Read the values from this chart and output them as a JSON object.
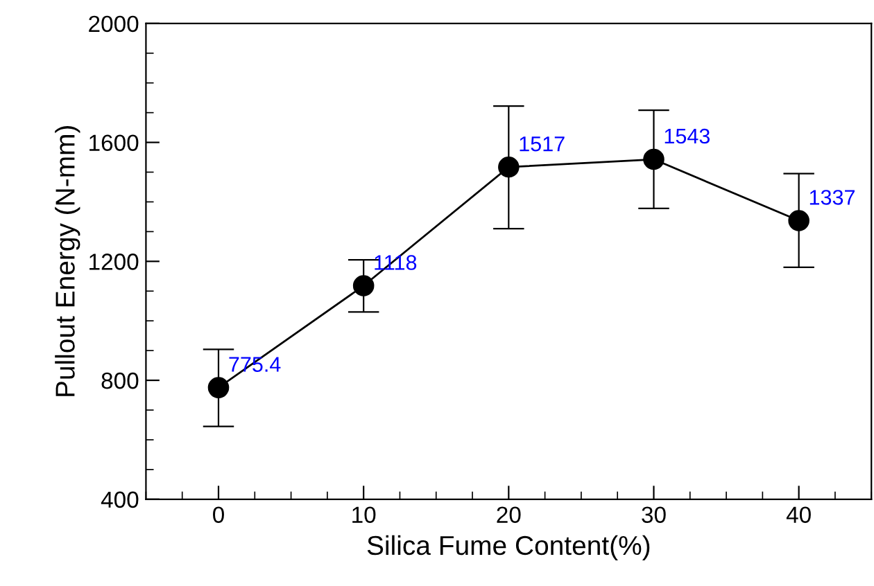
{
  "chart_data": {
    "type": "line",
    "xlabel": "Silica Fume Content(%)",
    "ylabel": "Pullout Energy (N-mm)",
    "x": [
      0,
      10,
      20,
      30,
      40
    ],
    "series": [
      {
        "color": "#000000",
        "values": [
          775.4,
          1118,
          1517,
          1543,
          1337
        ],
        "errors": [
          [
            645,
            904
          ],
          [
            1030,
            1205
          ],
          [
            1310,
            1722
          ],
          [
            1378,
            1708
          ],
          [
            1180,
            1495
          ]
        ],
        "value_labels": [
          "775.4",
          "1118",
          "1517",
          "1543",
          "1337"
        ]
      }
    ],
    "xlim": [
      -5,
      45
    ],
    "xticks": [
      0,
      10,
      20,
      30,
      40
    ],
    "ylim": [
      400,
      2000
    ],
    "yticks": [
      400,
      800,
      1200,
      1600,
      2000
    ],
    "marker": "circle",
    "line_style": "solid",
    "grid": false,
    "legend": false
  }
}
